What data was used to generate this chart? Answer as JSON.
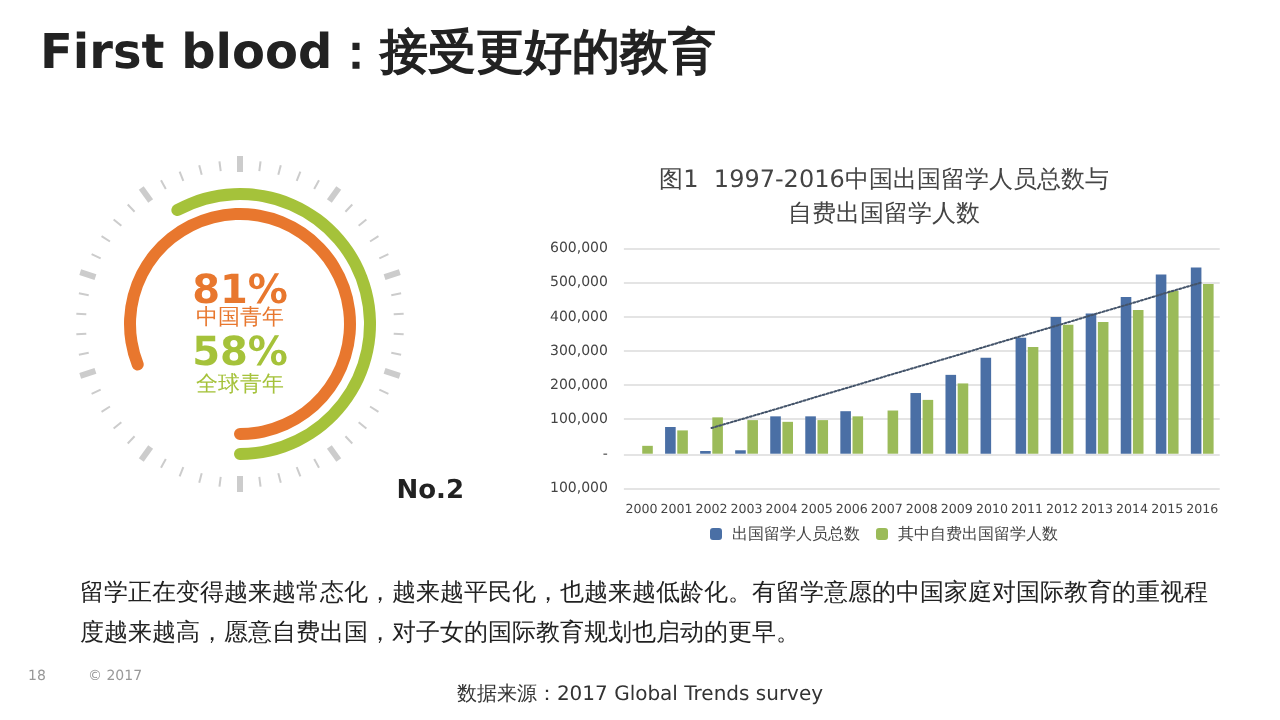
{
  "chart_data": [
    {
      "type": "other",
      "title": "First blood：接受更好的教育",
      "categories": [
        "中国青年",
        "全球青年"
      ],
      "values": [
        81,
        58
      ],
      "value_labels": [
        "81%",
        "58%"
      ],
      "colors": [
        "#e8772e",
        "#a5c23a"
      ],
      "annotations": [
        "No.2",
        "留学正在变得越来越常态化，越来越平民化，也越来越低龄化。有留学意愿的中国家庭对国际教育的重视程度越来越高，愿意自费出国，对子女的国际教育规划也启动的更早。",
        "数据来源：2017 Global Trends survey",
        "18",
        "© 2017"
      ]
    },
    {
      "type": "bar",
      "title": "图1  1997-2016中国出国留学人员总数与自费出国留学人数",
      "categories": [
        "2000",
        "2001",
        "2002",
        "2003",
        "2004",
        "2005",
        "2006",
        "2007",
        "2008",
        "2009",
        "2010",
        "2011",
        "2012",
        "2013",
        "2014",
        "2015",
        "2016"
      ],
      "series": [
        {
          "name": "出国留学人员总数",
          "color": "#4a6fa5",
          "values": [
            null,
            78000,
            8000,
            10000,
            109000,
            109000,
            124000,
            null,
            177000,
            230000,
            280000,
            338000,
            399000,
            409000,
            457000,
            523000,
            543000
          ]
        },
        {
          "name": "其中自费出国留学人数",
          "color": "#9bbb59",
          "values": [
            23000,
            68000,
            106000,
            98000,
            93000,
            98000,
            109000,
            126000,
            157000,
            205000,
            null,
            311000,
            376000,
            384000,
            419000,
            475000,
            495000
          ]
        },
        {
          "type": "line",
          "color": "#44546a",
          "line_style": "dotted",
          "values": [
            null,
            null,
            75000,
            105000,
            135000,
            166000,
            196000,
            227000,
            257000,
            287000,
            318000,
            348000,
            378000,
            409000,
            439000,
            470000,
            500000
          ]
        }
      ],
      "ylim": [
        -100000,
        600000
      ],
      "yticks": [
        {
          "value": -100000,
          "label": "100,000"
        },
        {
          "value": 0,
          "label": "-"
        },
        {
          "value": 100000,
          "label": "100,000"
        },
        {
          "value": 200000,
          "label": "200,000"
        },
        {
          "value": 300000,
          "label": "300,000"
        },
        {
          "value": 400000,
          "label": "400,000"
        },
        {
          "value": 500000,
          "label": "500,000"
        },
        {
          "value": 600000,
          "label": "600,000"
        }
      ],
      "grid": "y",
      "legend": "bottom"
    }
  ]
}
